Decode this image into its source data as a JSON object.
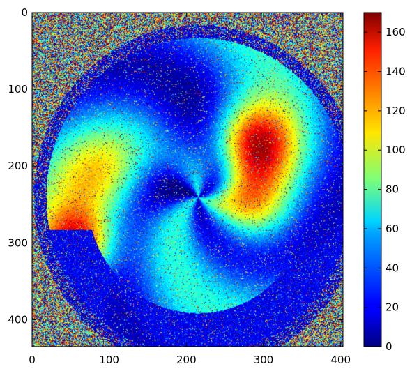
{
  "chart_data": {
    "type": "heatmap",
    "title": "",
    "xlabel": "",
    "ylabel": "",
    "colormap": "jet",
    "xlim": [
      0,
      403
    ],
    "ylim": [
      435,
      0
    ],
    "y_axis_inverted": true,
    "x_ticks": [
      "0",
      "100",
      "200",
      "300",
      "400"
    ],
    "y_ticks": [
      "0",
      "100",
      "200",
      "300",
      "400"
    ],
    "colorbar": {
      "range": [
        0,
        170
      ],
      "ticks": [
        "0",
        "20",
        "40",
        "60",
        "80",
        "100",
        "120",
        "140",
        "160"
      ]
    },
    "grid": false,
    "background_noise_value_range": [
      0,
      170
    ],
    "regions": [
      {
        "name": "outer noisy ring",
        "approx_value": "random 0-170"
      },
      {
        "name": "circular object boundary",
        "approx_value": 5
      },
      {
        "name": "upper-left blue region",
        "approx_value": 35
      },
      {
        "name": "left cyan/yellow band",
        "approx_value": 90
      },
      {
        "name": "upper-right red lobe",
        "approx_value": 150
      },
      {
        "name": "lower-left red lobe",
        "approx_value": 145
      },
      {
        "name": "central blue swirl",
        "approx_value": 25
      },
      {
        "name": "right yellow/green band",
        "approx_value": 95
      },
      {
        "name": "lower dark blue crescent",
        "approx_value": 8
      }
    ]
  }
}
